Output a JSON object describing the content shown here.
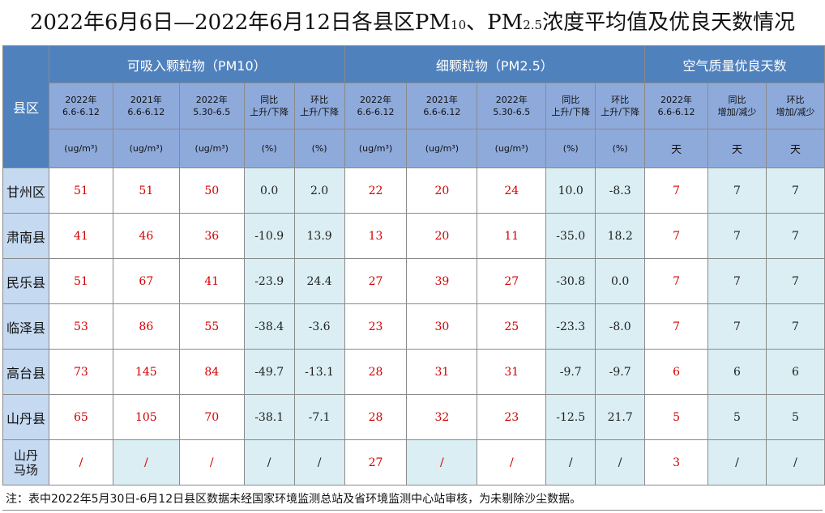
{
  "title": {
    "main": "2022年6月6日—2022年6月12日各县区PM",
    "pm10_sub": "10",
    "sep": "、PM",
    "pm25_sub": "2.5",
    "rest": "浓度平均值及优良天数情况"
  },
  "header": {
    "county": "县区",
    "groups": [
      "可吸入颗粒物（PM10）",
      "细颗粒物（PM2.5）",
      "空气质量优良天数"
    ],
    "pm10_cols": [
      {
        "l1": "2022年",
        "l2": "6.6-6.12",
        "unit": "(ug/m³)"
      },
      {
        "l1": "2021年",
        "l2": "6.6-6.12",
        "unit": "(ug/m³)"
      },
      {
        "l1": "2022年",
        "l2": "5.30-6.5",
        "unit": "(ug/m³)"
      },
      {
        "l1": "同比",
        "l2": "上升/下降",
        "unit": "(%)"
      },
      {
        "l1": "环比",
        "l2": "上升/下降",
        "unit": "(%)"
      }
    ],
    "pm25_cols": [
      {
        "l1": "2022年",
        "l2": "6.6-6.12",
        "unit": "(ug/m³)"
      },
      {
        "l1": "2021年",
        "l2": "6.6-6.12",
        "unit": "(ug/m³)"
      },
      {
        "l1": "2022年",
        "l2": "5.30-6.5",
        "unit": "(ug/m³)"
      },
      {
        "l1": "同比",
        "l2": "上升/下降",
        "unit": "(%)"
      },
      {
        "l1": "环比",
        "l2": "上升/下降",
        "unit": "(%)"
      }
    ],
    "days_cols": [
      {
        "l1": "2022年",
        "l2": "6.6-6.12",
        "unit": "天"
      },
      {
        "l1": "同比",
        "l2": "增加/减少",
        "unit": "天"
      },
      {
        "l1": "环比",
        "l2": "增加/减少",
        "unit": "天"
      }
    ]
  },
  "rows": [
    {
      "county": "甘州区",
      "v": [
        "51",
        "51",
        "50",
        "0.0",
        "2.0",
        "22",
        "20",
        "24",
        "10.0",
        "-8.3",
        "7",
        "7",
        "7"
      ]
    },
    {
      "county": "肃南县",
      "v": [
        "41",
        "46",
        "36",
        "-10.9",
        "13.9",
        "13",
        "20",
        "11",
        "-35.0",
        "18.2",
        "7",
        "7",
        "7"
      ]
    },
    {
      "county": "民乐县",
      "v": [
        "51",
        "67",
        "41",
        "-23.9",
        "24.4",
        "27",
        "39",
        "27",
        "-30.8",
        "0.0",
        "7",
        "7",
        "7"
      ]
    },
    {
      "county": "临泽县",
      "v": [
        "53",
        "86",
        "55",
        "-38.4",
        "-3.6",
        "23",
        "30",
        "25",
        "-23.3",
        "-8.0",
        "7",
        "7",
        "7"
      ]
    },
    {
      "county": "高台县",
      "v": [
        "73",
        "145",
        "84",
        "-49.7",
        "-13.1",
        "28",
        "31",
        "31",
        "-9.7",
        "-9.7",
        "6",
        "6",
        "6"
      ]
    },
    {
      "county": "山丹县",
      "v": [
        "65",
        "105",
        "70",
        "-38.1",
        "-7.1",
        "28",
        "32",
        "23",
        "-12.5",
        "21.7",
        "5",
        "5",
        "5"
      ]
    },
    {
      "county_l1": "山丹",
      "county_l2": "马场",
      "v": [
        "/",
        "/",
        "/",
        "/",
        "/",
        "27",
        "/",
        "/",
        "/",
        "/",
        "3",
        "/",
        "/"
      ]
    }
  ],
  "note": "注：表中2022年5月30日-6月12日县区数据未经国家环境监测总站及省环境监测中心站审核，为未剔除沙尘数据。",
  "colors": {
    "header_dark": "#4f81bd",
    "header_light": "#8eaadb",
    "county_bg": "#c5d9f1",
    "tint": "#daeef3",
    "value_red": "#d40000"
  }
}
